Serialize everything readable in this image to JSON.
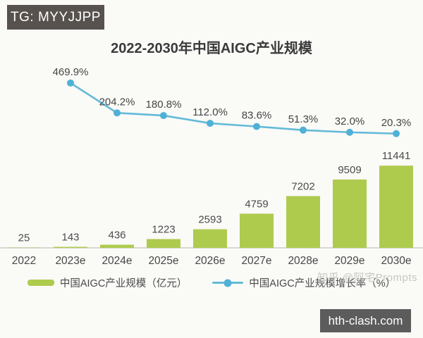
{
  "overlays": {
    "telegram_badge": "TG: MYYJJPP",
    "website_badge": "hth-clash.com",
    "watermark": "知乎 @阿宅Prompts"
  },
  "chart_data": {
    "type": "bar",
    "title": "2022-2030年中国AIGC产业规模",
    "categories": [
      "2022",
      "2023e",
      "2024e",
      "2025e",
      "2026e",
      "2027e",
      "2028e",
      "2029e",
      "2030e"
    ],
    "series": [
      {
        "name": "中国AIGC产业规模（亿元）",
        "type": "bar",
        "color": "#aecb4e",
        "values": [
          25,
          143,
          436,
          1223,
          2593,
          4759,
          7202,
          9509,
          11441
        ],
        "labels": [
          "25",
          "143",
          "436",
          "1223",
          "2593",
          "4759",
          "7202",
          "9509",
          "11441"
        ]
      },
      {
        "name": "中国AIGC产业规模增长率（%）",
        "type": "line",
        "color": "#63bad8",
        "marker_color": "#4fb1d6",
        "values": [
          null,
          469.9,
          204.2,
          180.8,
          112.0,
          83.6,
          51.3,
          32.0,
          20.3
        ],
        "labels": [
          "",
          "469.9%",
          "204.2%",
          "180.8%",
          "112.0%",
          "83.6%",
          "51.3%",
          "32.0%",
          "20.3%"
        ]
      }
    ],
    "xlabel": "",
    "ylabel": "",
    "ylim_primary": [
      0,
      12000
    ],
    "ylim_secondary": [
      0,
      500
    ],
    "grid": false,
    "legend_position": "bottom"
  }
}
